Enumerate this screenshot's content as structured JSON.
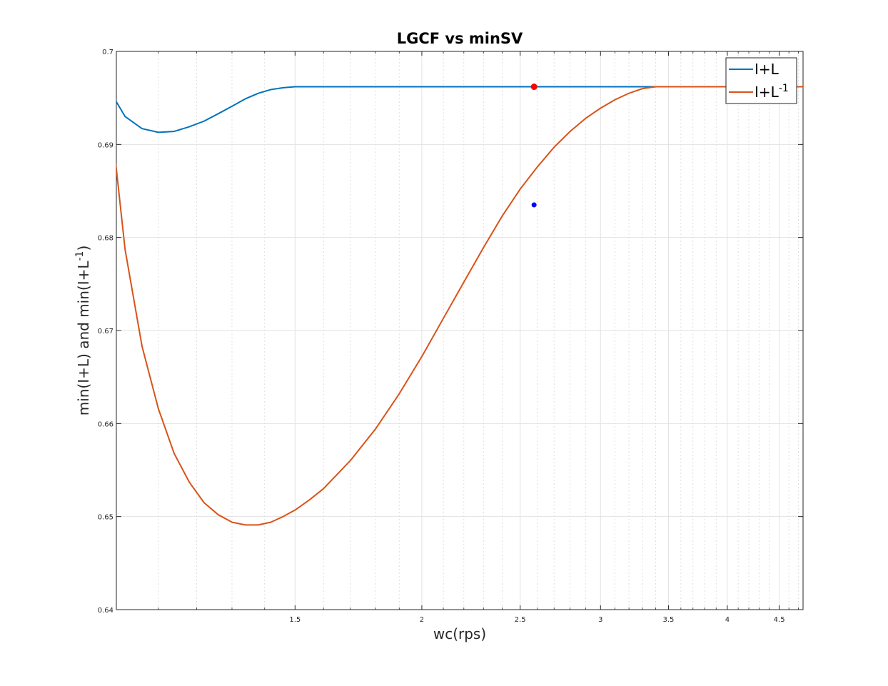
{
  "chart_data": {
    "type": "line",
    "title": "LGCF vs minSV",
    "xlabel": "wc(rps)",
    "ylabel": "min(I+L) and min(I+L^{-1})",
    "xscale": "log",
    "xlim": [
      1.0,
      4.75
    ],
    "ylim": [
      0.64,
      0.7
    ],
    "xticks": [
      1.5,
      2,
      2.5,
      3,
      3.5,
      4,
      4.5
    ],
    "xtick_labels": [
      "1.5",
      "2",
      "2.5",
      "3",
      "3.5",
      "4",
      "4.5"
    ],
    "yticks": [
      0.64,
      0.65,
      0.66,
      0.67,
      0.68,
      0.69,
      0.7
    ],
    "ytick_labels": [
      "0.64",
      "0.65",
      "0.66",
      "0.67",
      "0.68",
      "0.69",
      "0.7"
    ],
    "grid": true,
    "minor_grid": true,
    "legend_position": "top-right",
    "series": [
      {
        "name": "I+L",
        "color": "#0072BD",
        "x": [
          0.98,
          1.02,
          1.06,
          1.1,
          1.14,
          1.18,
          1.22,
          1.26,
          1.3,
          1.34,
          1.38,
          1.42,
          1.46,
          1.5,
          1.6,
          2.0,
          2.5,
          3.0,
          3.5,
          4.0,
          4.75
        ],
        "y": [
          0.6962,
          0.693,
          0.6917,
          0.6913,
          0.6914,
          0.6919,
          0.6925,
          0.6933,
          0.6941,
          0.6949,
          0.6955,
          0.6959,
          0.6961,
          0.6962,
          0.6962,
          0.6962,
          0.6962,
          0.6962,
          0.6962,
          0.6962,
          0.6962
        ]
      },
      {
        "name": "I+L^{-1}",
        "color": "#D95319",
        "x": [
          0.98,
          1.02,
          1.06,
          1.1,
          1.14,
          1.18,
          1.22,
          1.26,
          1.3,
          1.34,
          1.38,
          1.42,
          1.46,
          1.5,
          1.55,
          1.6,
          1.7,
          1.8,
          1.9,
          2.0,
          2.1,
          2.2,
          2.3,
          2.4,
          2.5,
          2.6,
          2.7,
          2.8,
          2.9,
          3.0,
          3.1,
          3.2,
          3.3,
          3.4,
          3.5,
          3.7,
          4.0,
          4.5,
          4.75
        ],
        "y": [
          0.6962,
          0.6787,
          0.6683,
          0.6616,
          0.6568,
          0.6537,
          0.6515,
          0.6502,
          0.6494,
          0.6491,
          0.6491,
          0.6494,
          0.65,
          0.6507,
          0.6518,
          0.653,
          0.656,
          0.6594,
          0.6632,
          0.6672,
          0.6713,
          0.6752,
          0.6789,
          0.6823,
          0.6852,
          0.6876,
          0.6897,
          0.6914,
          0.6928,
          0.6939,
          0.6948,
          0.6955,
          0.696,
          0.6962,
          0.6962,
          0.6962,
          0.6962,
          0.6962,
          0.6962
        ]
      }
    ],
    "markers": [
      {
        "series": "I+L",
        "x": 2.58,
        "y": 0.6962,
        "color": "#FF0000",
        "size": 4.5
      },
      {
        "series": "I+L^{-1}",
        "x": 2.58,
        "y": 0.6835,
        "color": "#0000FF",
        "size": 3.5
      }
    ]
  }
}
